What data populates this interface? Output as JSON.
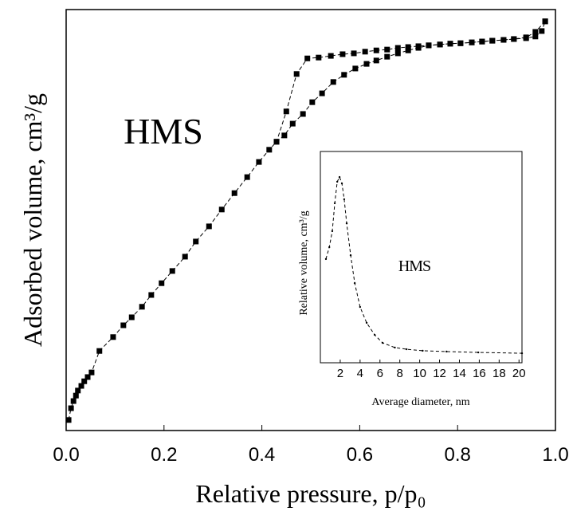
{
  "chart_data": [
    {
      "type": "line",
      "x_label": "Relative pressure, p/p₀",
      "y_label": "Adsorbed volume, cm³/g",
      "annotation": "HMS",
      "xlim": [
        0,
        1
      ],
      "ylim": [
        0,
        100
      ],
      "xticks": [
        {
          "value": 0,
          "label": "0.0"
        },
        0.2,
        0.4,
        0.6,
        0.8,
        {
          "value": 1,
          "label": "1.0"
        }
      ],
      "marker": "square",
      "line_style": "dashed",
      "series": [
        {
          "color": "#000000",
          "x": [
            0.005,
            0.01,
            0.015,
            0.02,
            0.024,
            0.031,
            0.037,
            0.044,
            0.052,
            0.068,
            0.096,
            0.117,
            0.134,
            0.155,
            0.174,
            0.195,
            0.217,
            0.243,
            0.265,
            0.292,
            0.318,
            0.344,
            0.37,
            0.394,
            0.415,
            0.43,
            0.446,
            0.463,
            0.484,
            0.503,
            0.523,
            0.546,
            0.568,
            0.591,
            0.614,
            0.634,
            0.656,
            0.678,
            0.699,
            0.72,
            0.741,
            0.764,
            0.785,
            0.806,
            0.829,
            0.85,
            0.871,
            0.894,
            0.915,
            0.94,
            0.959,
            0.972,
            0.979
          ],
          "values": [
            2.5,
            5.3,
            7.0,
            8.3,
            9.5,
            10.6,
            11.7,
            12.7,
            13.8,
            18.9,
            22.2,
            25.0,
            26.9,
            29.4,
            32.2,
            35.0,
            37.9,
            41.3,
            44.9,
            48.5,
            52.5,
            56.4,
            60.2,
            63.8,
            66.7,
            68.6,
            70.1,
            72.9,
            75.2,
            78.0,
            80.1,
            82.8,
            84.5,
            86.0,
            87.1,
            87.9,
            88.8,
            89.6,
            90.3,
            90.9,
            91.5,
            91.7,
            91.9,
            92.0,
            92.2,
            92.4,
            92.6,
            92.8,
            93.0,
            93.2,
            93.6,
            94.9,
            97.2
          ]
        },
        {
          "color": "#000000",
          "x": [
            0.979,
            0.959,
            0.94,
            0.915,
            0.894,
            0.871,
            0.85,
            0.829,
            0.806,
            0.785,
            0.764,
            0.741,
            0.72,
            0.699,
            0.678,
            0.656,
            0.634,
            0.611,
            0.588,
            0.565,
            0.541,
            0.516,
            0.493,
            0.471,
            0.45,
            0.43
          ],
          "values": [
            97.2,
            94.7,
            93.4,
            93.0,
            92.8,
            92.6,
            92.4,
            92.2,
            92.0,
            91.9,
            91.7,
            91.5,
            91.3,
            91.1,
            90.9,
            90.5,
            90.3,
            90.0,
            89.6,
            89.4,
            89.0,
            88.6,
            88.4,
            84.7,
            75.8,
            68.6
          ]
        }
      ]
    },
    {
      "type": "line",
      "x_label": "Average diameter, nm",
      "y_label": "Relative volume, cm³/g",
      "annotation": "HMS",
      "xlim": [
        0,
        20.3
      ],
      "ylim": [
        0,
        100
      ],
      "xticks": [
        2,
        4,
        6,
        8,
        10,
        12,
        14,
        16,
        18,
        20
      ],
      "marker": "dot",
      "line_style": "dashed",
      "series": [
        {
          "color": "#000000",
          "x": [
            0.56,
            0.9,
            1.2,
            1.45,
            1.7,
            1.93,
            2.17,
            2.4,
            2.65,
            3.05,
            3.46,
            4.0,
            4.66,
            5.47,
            6.27,
            7.5,
            8.68,
            10.3,
            12.7,
            15.9,
            20.3
          ],
          "values": [
            49.1,
            54.7,
            62.3,
            75.5,
            85.7,
            87.9,
            84.9,
            77.4,
            66.0,
            50.9,
            37.7,
            26.4,
            18.9,
            13.2,
            9.4,
            7.2,
            6.4,
            5.7,
            5.3,
            4.9,
            4.5
          ]
        }
      ]
    }
  ]
}
